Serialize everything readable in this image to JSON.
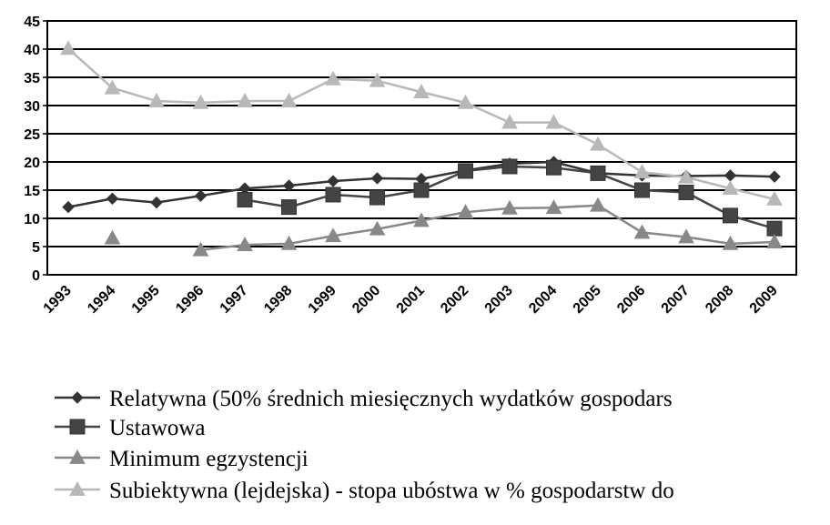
{
  "chart_data": {
    "type": "line",
    "categories": [
      "1993",
      "1994",
      "1995",
      "1996",
      "1997",
      "1998",
      "1999",
      "2000",
      "2001",
      "2002",
      "2003",
      "2004",
      "2005",
      "2006",
      "2007",
      "2008",
      "2009"
    ],
    "series": [
      {
        "name": "Relatywna (50% średnich miesięcznych wydatków gospodars",
        "color": "#333333",
        "marker": "diamond",
        "values": [
          12,
          13.5,
          12.8,
          14,
          15.3,
          15.8,
          16.6,
          17.1,
          17,
          18.5,
          19.7,
          20,
          18,
          17.6,
          17.5,
          17.6,
          17.4
        ]
      },
      {
        "name": "Ustawowa",
        "color": "#444444",
        "marker": "square",
        "values": [
          null,
          null,
          null,
          null,
          13.3,
          12,
          14.2,
          13.7,
          15,
          18.4,
          19.2,
          19,
          18,
          15,
          14.6,
          10.5,
          8.2
        ]
      },
      {
        "name": "Minimum egzystencji",
        "color": "#888888",
        "marker": "triangle",
        "values": [
          null,
          6.5,
          null,
          4.4,
          5.3,
          5.5,
          6.9,
          8.1,
          9.6,
          11.1,
          11.8,
          11.9,
          12.3,
          7.5,
          6.7,
          5.5,
          5.8
        ]
      },
      {
        "name": "Subiektywna (lejdejska) - stopa ubóstwa w % gospodarstw do",
        "color": "#b8b8b8",
        "marker": "triangle",
        "values": [
          40.1,
          33.1,
          30.8,
          30.5,
          30.8,
          30.8,
          34.7,
          34.4,
          32.4,
          30.5,
          27,
          27,
          23.1,
          18.2,
          17.3,
          15.3,
          13.4
        ]
      }
    ],
    "ylim": [
      0,
      45
    ],
    "yticks": [
      0,
      5,
      10,
      15,
      20,
      25,
      30,
      35,
      40,
      45
    ],
    "grid": true
  }
}
